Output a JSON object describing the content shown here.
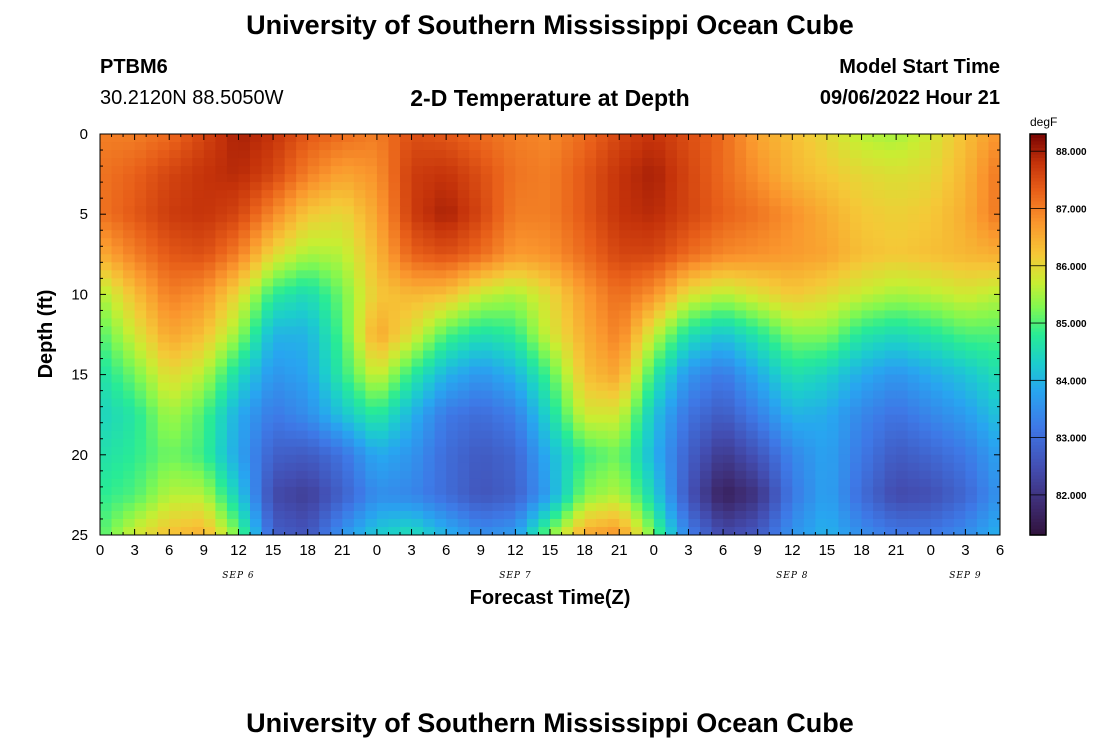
{
  "title": "University of Southern Mississippi Ocean Cube",
  "footer_title": "University of Southern Mississippi Ocean Cube",
  "station": {
    "id": "PTBM6",
    "coords": "30.2120N  88.5050W"
  },
  "plot_title": "2-D Temperature at Depth",
  "model": {
    "label": "Model Start Time",
    "value": "09/06/2022 Hour 21"
  },
  "chart_data": {
    "type": "heatmap",
    "title": "2-D Temperature at Depth",
    "xlabel": "Forecast Time(Z)",
    "ylabel": "Depth (ft)",
    "x_start_hour": 0,
    "x_end_hour": 78,
    "x_tick_step_hours": 3,
    "x_tick_labels": [
      "0",
      "3",
      "6",
      "9",
      "12",
      "15",
      "18",
      "21",
      "0",
      "3",
      "6",
      "9",
      "12",
      "15",
      "18",
      "21",
      "0",
      "3",
      "6",
      "9",
      "12",
      "15",
      "18",
      "21",
      "0",
      "3",
      "6"
    ],
    "date_labels": [
      {
        "hour": 12,
        "text": "SEP 6"
      },
      {
        "hour": 36,
        "text": "SEP 7"
      },
      {
        "hour": 60,
        "text": "SEP 8"
      },
      {
        "hour": 75,
        "text": "SEP 9"
      }
    ],
    "ylim": [
      0,
      25
    ],
    "y_ticks": [
      0,
      5,
      10,
      15,
      20,
      25
    ],
    "colorbar": {
      "units": "degF",
      "min": 81.3,
      "max": 88.3,
      "ticks": [
        82.0,
        83.0,
        84.0,
        85.0,
        86.0,
        87.0,
        88.0
      ],
      "tick_labels": [
        "82.000",
        "83.000",
        "84.000",
        "85.000",
        "86.000",
        "87.000",
        "88.000"
      ]
    },
    "depth_rows_ft": [
      0,
      2.5,
      5,
      7.5,
      10,
      12.5,
      15,
      17.5,
      20,
      22.5,
      25
    ],
    "time_cols_hours": [
      0,
      3,
      6,
      9,
      12,
      15,
      18,
      21,
      24,
      27,
      30,
      33,
      36,
      39,
      42,
      45,
      48,
      51,
      54,
      57,
      60,
      63,
      66,
      69,
      72,
      75,
      78
    ],
    "temperature_degF": [
      [
        87.0,
        87.0,
        87.2,
        87.6,
        88.0,
        87.8,
        87.4,
        87.2,
        87.0,
        87.5,
        87.4,
        87.2,
        87.0,
        86.9,
        87.2,
        87.6,
        87.8,
        87.5,
        87.2,
        86.6,
        86.3,
        86.0,
        85.6,
        85.5,
        85.8,
        86.3,
        86.8
      ],
      [
        87.1,
        87.3,
        87.6,
        87.8,
        87.9,
        87.6,
        87.0,
        86.6,
        86.8,
        87.7,
        87.8,
        87.5,
        87.1,
        87.0,
        87.4,
        87.8,
        88.0,
        87.6,
        87.2,
        86.8,
        86.4,
        86.2,
        86.0,
        85.9,
        86.0,
        86.4,
        87.1
      ],
      [
        87.1,
        87.4,
        87.7,
        87.8,
        87.6,
        86.9,
        86.2,
        86.0,
        86.6,
        87.7,
        88.0,
        87.6,
        87.0,
        87.0,
        87.4,
        87.8,
        87.9,
        87.6,
        87.3,
        87.1,
        86.8,
        86.5,
        86.2,
        86.1,
        86.2,
        86.5,
        87.1
      ],
      [
        86.5,
        87.0,
        87.4,
        87.5,
        87.0,
        86.0,
        85.5,
        85.6,
        86.4,
        87.3,
        87.5,
        87.2,
        86.7,
        86.8,
        87.2,
        87.6,
        87.6,
        87.2,
        86.9,
        86.8,
        86.7,
        86.6,
        86.3,
        86.2,
        86.3,
        86.4,
        86.5
      ],
      [
        85.5,
        86.3,
        87.0,
        86.8,
        86.0,
        84.8,
        84.5,
        85.2,
        86.2,
        86.4,
        86.3,
        85.7,
        85.5,
        86.0,
        86.7,
        87.2,
        86.8,
        85.9,
        85.6,
        85.9,
        86.2,
        86.0,
        85.7,
        85.5,
        85.6,
        85.8,
        85.6
      ],
      [
        85.0,
        85.8,
        86.6,
        86.3,
        85.4,
        84.0,
        84.0,
        85.0,
        86.6,
        85.9,
        85.0,
        84.6,
        84.8,
        85.8,
        86.5,
        87.0,
        85.7,
        84.6,
        84.2,
        84.7,
        85.3,
        85.3,
        84.7,
        84.5,
        84.7,
        85.0,
        85.0
      ],
      [
        84.6,
        85.2,
        86.0,
        85.6,
        84.5,
        83.6,
        83.8,
        84.8,
        85.8,
        84.8,
        84.0,
        83.6,
        84.0,
        85.0,
        86.3,
        86.6,
        84.8,
        83.6,
        83.2,
        83.9,
        84.6,
        84.4,
        83.9,
        83.6,
        83.9,
        84.2,
        84.6
      ],
      [
        84.4,
        84.7,
        85.5,
        85.0,
        83.9,
        83.2,
        83.5,
        84.2,
        84.8,
        84.0,
        83.2,
        83.0,
        83.3,
        84.5,
        85.8,
        85.8,
        84.2,
        83.1,
        82.7,
        83.3,
        84.0,
        83.9,
        83.4,
        83.1,
        83.4,
        83.7,
        84.2
      ],
      [
        84.6,
        84.8,
        85.2,
        84.9,
        83.8,
        82.8,
        82.7,
        83.1,
        83.9,
        83.6,
        83.0,
        82.7,
        82.9,
        84.0,
        84.9,
        85.2,
        84.0,
        82.8,
        82.1,
        82.6,
        83.4,
        83.8,
        83.2,
        82.7,
        82.9,
        83.2,
        83.8
      ],
      [
        84.8,
        85.0,
        85.6,
        85.6,
        84.3,
        82.4,
        82.2,
        82.8,
        83.5,
        83.4,
        83.0,
        82.6,
        82.8,
        83.8,
        85.3,
        85.6,
        84.4,
        82.6,
        81.6,
        82.0,
        83.2,
        83.8,
        83.0,
        82.4,
        82.5,
        82.9,
        83.6
      ],
      [
        85.0,
        85.8,
        86.3,
        86.5,
        85.2,
        82.8,
        82.6,
        83.6,
        84.3,
        84.6,
        84.0,
        83.5,
        83.7,
        85.3,
        86.6,
        86.8,
        85.2,
        83.3,
        82.4,
        82.7,
        83.6,
        84.0,
        83.5,
        83.2,
        83.2,
        83.5,
        84.0
      ]
    ]
  }
}
